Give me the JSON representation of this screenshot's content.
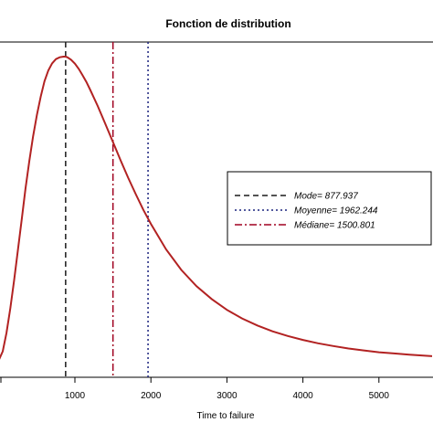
{
  "chart_data": {
    "type": "line",
    "title": "Fonction de distribution",
    "xlabel": "Time to failure",
    "ylabel": "",
    "xlim": [
      -100,
      5700
    ],
    "x_ticks": [
      1000,
      2000,
      3000,
      4000,
      5000
    ],
    "x_tick_labels": [
      "1000",
      "2000",
      "3000",
      "4000",
      "5000"
    ],
    "grid": false,
    "legend_position": "right",
    "series": [
      {
        "color": "#B22222",
        "x": [
          -100,
          0,
          50,
          100,
          150,
          200,
          250,
          300,
          350,
          400,
          450,
          500,
          550,
          600,
          650,
          700,
          750,
          800,
          850,
          878,
          900,
          950,
          1000,
          1050,
          1100,
          1150,
          1200,
          1300,
          1400,
          1500,
          1600,
          1700,
          1800,
          1900,
          2000,
          2200,
          2400,
          2600,
          2800,
          3000,
          3200,
          3400,
          3600,
          3800,
          4000,
          4200,
          4400,
          4600,
          4800,
          5000,
          5200,
          5400,
          5700
        ],
        "y": [
          0.0,
          0.012,
          0.04,
          0.1,
          0.18,
          0.27,
          0.37,
          0.47,
          0.57,
          0.66,
          0.74,
          0.81,
          0.87,
          0.92,
          0.955,
          0.978,
          0.992,
          0.998,
          1.0,
          1.0,
          0.998,
          0.99,
          0.977,
          0.96,
          0.94,
          0.918,
          0.893,
          0.839,
          0.781,
          0.722,
          0.663,
          0.606,
          0.552,
          0.501,
          0.455,
          0.372,
          0.305,
          0.252,
          0.21,
          0.175,
          0.147,
          0.124,
          0.105,
          0.09,
          0.077,
          0.066,
          0.057,
          0.049,
          0.043,
          0.037,
          0.033,
          0.029,
          0.024
        ]
      }
    ],
    "vertical_lines": [
      {
        "label": "Mode= 877.937",
        "x": 877.937,
        "style": "dashed",
        "color": "#1a1a1a"
      },
      {
        "label": "Moyenne= 1962.244",
        "x": 1962.244,
        "style": "dotted",
        "color": "#1a237e"
      },
      {
        "label": "Médiane= 1500.801",
        "x": 1500.801,
        "style": "dashdot",
        "color": "#a00020"
      }
    ]
  }
}
